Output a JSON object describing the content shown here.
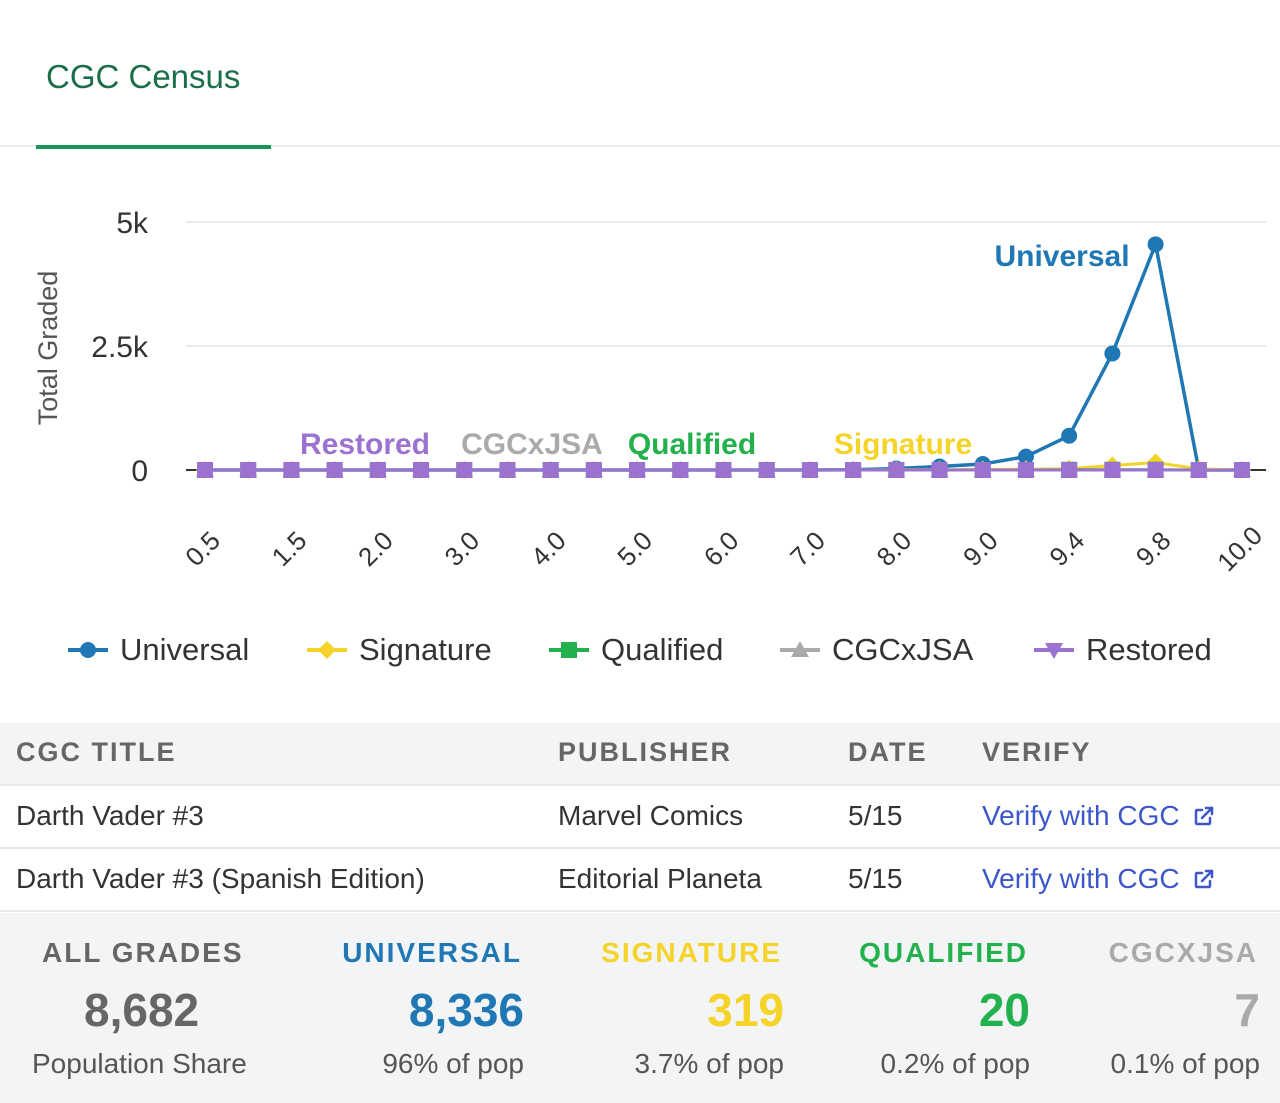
{
  "tab": {
    "label": "CGC Census"
  },
  "colors": {
    "universal": "#1f77b4",
    "signature": "#f5d328",
    "qualified": "#22b14c",
    "cgcxjsa": "#aaaaaa",
    "restored": "#9b72cf",
    "all_grades": "#666666",
    "link": "#3c57c9",
    "accent": "#17965a"
  },
  "chart_data": {
    "type": "line",
    "ylabel": "Total Graded",
    "ylim": [
      0,
      5000
    ],
    "yticks": [
      {
        "value": 0,
        "label": "0"
      },
      {
        "value": 2500,
        "label": "2.5k"
      },
      {
        "value": 5000,
        "label": "5k"
      }
    ],
    "x": [
      "0.5",
      "1.0",
      "1.5",
      "1.8",
      "2.0",
      "2.5",
      "3.0",
      "3.5",
      "4.0",
      "4.5",
      "5.0",
      "5.5",
      "6.0",
      "6.5",
      "7.0",
      "7.5",
      "8.0",
      "8.5",
      "9.0",
      "9.2",
      "9.4",
      "9.6",
      "9.8",
      "9.9",
      "10.0"
    ],
    "xticks": [
      "0.5",
      "1.5",
      "2.0",
      "3.0",
      "4.0",
      "5.0",
      "6.0",
      "7.0",
      "8.0",
      "9.0",
      "9.4",
      "9.8",
      "10.0"
    ],
    "series": [
      {
        "name": "Universal",
        "key": "universal",
        "marker": "circle",
        "values": [
          0,
          0,
          0,
          0,
          0,
          0,
          0,
          0,
          0,
          0,
          0,
          0,
          0,
          0,
          0,
          5,
          30,
          70,
          120,
          270,
          690,
          2350,
          4550,
          0,
          0
        ]
      },
      {
        "name": "Signature",
        "key": "signature",
        "marker": "diamond",
        "values": [
          0,
          0,
          0,
          0,
          0,
          0,
          0,
          0,
          0,
          0,
          0,
          0,
          0,
          0,
          0,
          0,
          5,
          5,
          10,
          15,
          25,
          90,
          150,
          20,
          0
        ]
      },
      {
        "name": "Qualified",
        "key": "qualified",
        "marker": "square",
        "values": [
          0,
          0,
          0,
          0,
          0,
          0,
          0,
          0,
          0,
          0,
          0,
          0,
          0,
          0,
          0,
          0,
          0,
          0,
          0,
          0,
          5,
          5,
          5,
          0,
          0
        ]
      },
      {
        "name": "CGCxJSA",
        "key": "cgcxjsa",
        "marker": "triangle",
        "values": [
          0,
          0,
          0,
          0,
          0,
          0,
          0,
          0,
          0,
          0,
          0,
          0,
          0,
          0,
          0,
          0,
          0,
          0,
          0,
          0,
          0,
          2,
          3,
          0,
          0
        ]
      },
      {
        "name": "Restored",
        "key": "restored",
        "marker": "triangle-down",
        "values": [
          0,
          0,
          0,
          0,
          0,
          0,
          0,
          0,
          0,
          0,
          0,
          0,
          0,
          0,
          0,
          0,
          0,
          0,
          0,
          0,
          0,
          0,
          0,
          0,
          0
        ]
      }
    ],
    "legend_position": "bottom",
    "grid": true
  },
  "table": {
    "headers": {
      "title": "CGC TITLE",
      "publisher": "PUBLISHER",
      "date": "DATE",
      "verify": "VERIFY"
    },
    "rows": [
      {
        "title": "Darth Vader #3",
        "publisher": "Marvel Comics",
        "date": "5/15",
        "verify": "Verify with CGC"
      },
      {
        "title": "Darth Vader #3 (Spanish Edition)",
        "publisher": "Editorial Planeta",
        "date": "5/15",
        "verify": "Verify with CGC"
      }
    ]
  },
  "stats": [
    {
      "label": "ALL GRADES",
      "value": "8,682",
      "sub": "Population Share",
      "color_key": "all_grades"
    },
    {
      "label": "UNIVERSAL",
      "value": "8,336",
      "sub": "96% of pop",
      "color_key": "universal"
    },
    {
      "label": "SIGNATURE",
      "value": "319",
      "sub": "3.7% of pop",
      "color_key": "signature"
    },
    {
      "label": "QUALIFIED",
      "value": "20",
      "sub": "0.2% of pop",
      "color_key": "qualified"
    },
    {
      "label": "CGCXJSA",
      "value": "7",
      "sub": "0.1% of pop",
      "color_key": "cgcxjsa"
    }
  ]
}
